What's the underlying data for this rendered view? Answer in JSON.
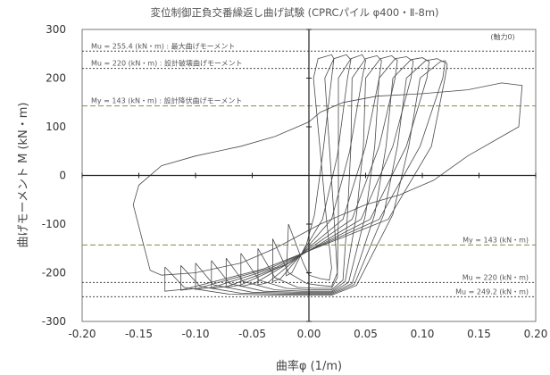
{
  "chart_data": {
    "type": "line",
    "title": "変位制御正負交番繰返し曲げ試験 (CPRCパイル φ400・Ⅱ-8m)",
    "subtitle": "(軸力0)",
    "xlabel": "曲率φ (1/m)",
    "ylabel": "曲げモーメント M (kN・m)",
    "xlim": [
      -0.2,
      0.2
    ],
    "ylim": [
      -300,
      300
    ],
    "xticks": [
      "-0.20",
      "-0.15",
      "-0.10",
      "-0.05",
      "0.00",
      "0.05",
      "0.10",
      "0.15",
      "0.20"
    ],
    "yticks": [
      "300",
      "200",
      "100",
      "0",
      "-100",
      "-200",
      "-300"
    ],
    "grid": false,
    "reference_lines": [
      {
        "y": 255.4,
        "label": "Mu = 255.4 (kN・m) : 最大曲げモーメント",
        "color": "#444444",
        "dash": "2,2"
      },
      {
        "y": 220,
        "label": "Mu = 220 (kN・m) : 設計破壊曲げモーメント",
        "color": "#444444",
        "dash": "2,2"
      },
      {
        "y": 143,
        "label": "My = 143 (kN・m) : 設計降伏曲げモーメント",
        "color": "#8a8a4a",
        "dash": "6,3"
      },
      {
        "y": -143,
        "label": "My = 143 (kN・m)",
        "color": "#8a8a4a",
        "dash": "6,3"
      },
      {
        "y": -220,
        "label": "Mu = 220 (kN・m)",
        "color": "#444444",
        "dash": "2,2"
      },
      {
        "y": -249.2,
        "label": "Mu = 249.2 (kN・m)",
        "color": "#444444",
        "dash": "2,2"
      }
    ],
    "series": [
      {
        "points": [
          [
            -0.018,
            -100
          ],
          [
            -0.005,
            -180
          ],
          [
            0.0,
            -205
          ],
          [
            0.01,
            -212
          ],
          [
            0.018,
            -215
          ],
          [
            0.02,
            -190
          ],
          [
            0.015,
            -80
          ],
          [
            0.01,
            50
          ],
          [
            0.004,
            200
          ],
          [
            0.008,
            240
          ],
          [
            0.02,
            248
          ],
          [
            0.022,
            240
          ],
          [
            0.02,
            200
          ],
          [
            0.012,
            40
          ],
          [
            0.005,
            -80
          ],
          [
            -0.002,
            -140
          ],
          [
            -0.015,
            -200
          ],
          [
            -0.02,
            -206
          ],
          [
            -0.018,
            -100
          ]
        ]
      },
      {
        "points": [
          [
            -0.032,
            -130
          ],
          [
            -0.018,
            -200
          ],
          [
            -0.002,
            -222
          ],
          [
            0.01,
            -226
          ],
          [
            0.02,
            -228
          ],
          [
            0.025,
            -200
          ],
          [
            0.022,
            -80
          ],
          [
            0.018,
            60
          ],
          [
            0.014,
            200
          ],
          [
            0.022,
            240
          ],
          [
            0.033,
            248
          ],
          [
            0.037,
            238
          ],
          [
            0.034,
            200
          ],
          [
            0.025,
            40
          ],
          [
            0.012,
            -90
          ],
          [
            -0.006,
            -160
          ],
          [
            -0.025,
            -212
          ],
          [
            -0.032,
            -218
          ],
          [
            -0.032,
            -130
          ]
        ]
      },
      {
        "points": [
          [
            -0.045,
            -150
          ],
          [
            -0.03,
            -210
          ],
          [
            -0.01,
            -230
          ],
          [
            0.005,
            -232
          ],
          [
            0.02,
            -232
          ],
          [
            0.025,
            -210
          ],
          [
            0.026,
            -80
          ],
          [
            0.026,
            60
          ],
          [
            0.026,
            200
          ],
          [
            0.037,
            240
          ],
          [
            0.047,
            248
          ],
          [
            0.05,
            236
          ],
          [
            0.047,
            200
          ],
          [
            0.036,
            50
          ],
          [
            0.02,
            -90
          ],
          [
            -0.01,
            -170
          ],
          [
            -0.036,
            -220
          ],
          [
            -0.045,
            -225
          ],
          [
            -0.045,
            -150
          ]
        ]
      },
      {
        "points": [
          [
            -0.06,
            -160
          ],
          [
            -0.044,
            -215
          ],
          [
            -0.02,
            -232
          ],
          [
            0.0,
            -235
          ],
          [
            0.02,
            -235
          ],
          [
            0.03,
            -215
          ],
          [
            0.034,
            -80
          ],
          [
            0.037,
            60
          ],
          [
            0.038,
            200
          ],
          [
            0.05,
            240
          ],
          [
            0.06,
            246
          ],
          [
            0.064,
            236
          ],
          [
            0.062,
            200
          ],
          [
            0.05,
            60
          ],
          [
            0.03,
            -90
          ],
          [
            -0.014,
            -175
          ],
          [
            -0.048,
            -222
          ],
          [
            -0.06,
            -228
          ],
          [
            -0.06,
            -160
          ]
        ]
      },
      {
        "points": [
          [
            -0.073,
            -170
          ],
          [
            -0.058,
            -218
          ],
          [
            -0.03,
            -235
          ],
          [
            -0.005,
            -238
          ],
          [
            0.02,
            -238
          ],
          [
            0.032,
            -218
          ],
          [
            0.042,
            -80
          ],
          [
            0.048,
            60
          ],
          [
            0.05,
            200
          ],
          [
            0.063,
            240
          ],
          [
            0.073,
            246
          ],
          [
            0.078,
            236
          ],
          [
            0.076,
            200
          ],
          [
            0.062,
            60
          ],
          [
            0.038,
            -90
          ],
          [
            -0.018,
            -180
          ],
          [
            -0.06,
            -225
          ],
          [
            -0.073,
            -230
          ],
          [
            -0.073,
            -170
          ]
        ]
      },
      {
        "points": [
          [
            -0.086,
            -175
          ],
          [
            -0.07,
            -222
          ],
          [
            -0.04,
            -238
          ],
          [
            -0.01,
            -240
          ],
          [
            0.02,
            -240
          ],
          [
            0.035,
            -220
          ],
          [
            0.05,
            -80
          ],
          [
            0.058,
            60
          ],
          [
            0.062,
            200
          ],
          [
            0.076,
            240
          ],
          [
            0.086,
            244
          ],
          [
            0.092,
            235
          ],
          [
            0.09,
            200
          ],
          [
            0.074,
            60
          ],
          [
            0.046,
            -90
          ],
          [
            -0.022,
            -185
          ],
          [
            -0.072,
            -228
          ],
          [
            -0.086,
            -232
          ],
          [
            -0.086,
            -175
          ]
        ]
      },
      {
        "points": [
          [
            -0.1,
            -180
          ],
          [
            -0.084,
            -225
          ],
          [
            -0.05,
            -240
          ],
          [
            -0.015,
            -242
          ],
          [
            0.02,
            -242
          ],
          [
            0.038,
            -222
          ],
          [
            0.058,
            -80
          ],
          [
            0.068,
            60
          ],
          [
            0.074,
            200
          ],
          [
            0.09,
            238
          ],
          [
            0.1,
            242
          ],
          [
            0.106,
            234
          ],
          [
            0.104,
            200
          ],
          [
            0.086,
            60
          ],
          [
            0.054,
            -90
          ],
          [
            -0.028,
            -188
          ],
          [
            -0.085,
            -230
          ],
          [
            -0.1,
            -234
          ],
          [
            -0.1,
            -180
          ]
        ]
      },
      {
        "points": [
          [
            -0.113,
            -185
          ],
          [
            -0.096,
            -228
          ],
          [
            -0.06,
            -242
          ],
          [
            -0.02,
            -244
          ],
          [
            0.02,
            -244
          ],
          [
            0.04,
            -224
          ],
          [
            0.066,
            -80
          ],
          [
            0.078,
            60
          ],
          [
            0.086,
            200
          ],
          [
            0.103,
            236
          ],
          [
            0.113,
            240
          ],
          [
            0.12,
            232
          ],
          [
            0.118,
            200
          ],
          [
            0.098,
            60
          ],
          [
            0.062,
            -90
          ],
          [
            -0.034,
            -190
          ],
          [
            -0.098,
            -232
          ],
          [
            -0.113,
            -236
          ],
          [
            -0.113,
            -185
          ]
        ]
      },
      {
        "points": [
          [
            -0.127,
            -188
          ],
          [
            -0.11,
            -230
          ],
          [
            -0.07,
            -244
          ],
          [
            -0.025,
            -246
          ],
          [
            0.02,
            -246
          ],
          [
            0.042,
            -226
          ],
          [
            0.074,
            -80
          ],
          [
            0.088,
            60
          ],
          [
            0.098,
            200
          ],
          [
            0.116,
            234
          ],
          [
            0.12,
            236
          ],
          [
            0.122,
            228
          ],
          [
            0.12,
            200
          ],
          [
            0.108,
            60
          ],
          [
            0.07,
            -90
          ],
          [
            -0.04,
            -192
          ],
          [
            -0.11,
            -234
          ],
          [
            -0.127,
            -238
          ],
          [
            -0.127,
            -188
          ]
        ]
      },
      {
        "points": [
          [
            -0.14,
            -195
          ],
          [
            -0.155,
            -60
          ],
          [
            -0.15,
            -20
          ],
          [
            -0.13,
            20
          ],
          [
            -0.1,
            40
          ],
          [
            -0.06,
            60
          ],
          [
            -0.03,
            80
          ],
          [
            -0.01,
            100
          ],
          [
            0.0,
            110
          ],
          [
            0.01,
            130
          ],
          [
            0.03,
            150
          ],
          [
            0.06,
            163
          ],
          [
            0.1,
            168
          ],
          [
            0.14,
            176
          ],
          [
            0.17,
            190
          ],
          [
            0.188,
            185
          ],
          [
            0.185,
            100
          ],
          [
            0.17,
            80
          ],
          [
            0.14,
            40
          ],
          [
            0.11,
            -10
          ],
          [
            0.08,
            -40
          ],
          [
            0.05,
            -60
          ],
          [
            0.03,
            -80
          ],
          [
            0.01,
            -100
          ],
          [
            -0.01,
            -125
          ],
          [
            -0.03,
            -150
          ],
          [
            -0.06,
            -180
          ],
          [
            -0.1,
            -200
          ],
          [
            -0.13,
            -205
          ],
          [
            -0.14,
            -195
          ]
        ]
      }
    ]
  }
}
